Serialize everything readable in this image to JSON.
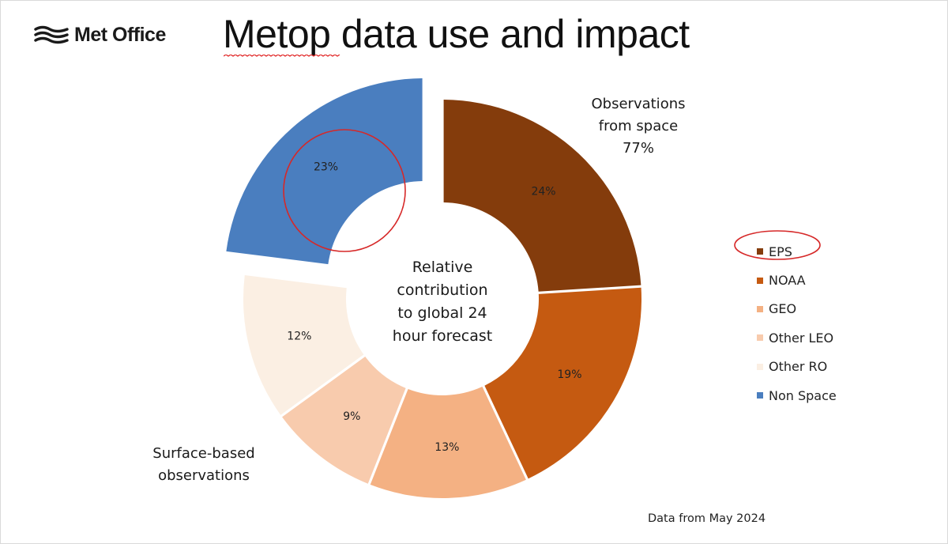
{
  "header": {
    "logo_text": "Met Office",
    "title": "Metop data use and impact"
  },
  "chart_data": {
    "type": "donut",
    "categories": [
      "EPS",
      "NOAA",
      "GEO",
      "Other LEO",
      "Other RO",
      "Non Space"
    ],
    "values": [
      24,
      19,
      13,
      9,
      12,
      23
    ],
    "labels": [
      "24%",
      "19%",
      "13%",
      "9%",
      "12%",
      "23%"
    ],
    "colors": [
      "#843c0c",
      "#c55a11",
      "#f4b183",
      "#f8cbad",
      "#fbefe3",
      "#4a7ebf"
    ],
    "exploded": "Non Space",
    "center_text": [
      "Relative",
      "contribution",
      "to global 24",
      "hour forecast"
    ],
    "legend_position": "right",
    "highlighted": "EPS",
    "annotations": {
      "space": [
        "Observations",
        "from space",
        "77%"
      ],
      "surface": [
        "Surface-based",
        "observations"
      ]
    },
    "footnote": "Data from May 2024"
  }
}
